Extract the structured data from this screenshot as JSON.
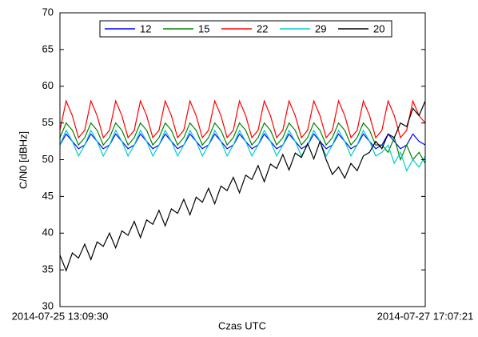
{
  "chart_data": {
    "type": "line",
    "xlabel": "Czas UTC",
    "ylabel": "C/N0 [dBHz]",
    "categories": [
      "2014-07-25 13:09:30",
      null,
      null,
      null,
      null,
      null,
      null,
      null,
      null,
      null,
      null,
      null,
      null,
      null,
      null,
      null,
      null,
      null,
      null,
      null,
      null,
      null,
      null,
      null,
      null,
      null,
      null,
      null,
      null,
      null,
      null,
      null,
      null,
      null,
      null,
      null,
      null,
      null,
      null,
      null,
      null,
      null,
      null,
      null,
      null,
      null,
      null,
      null,
      null,
      null,
      null,
      null,
      null,
      null,
      null,
      null,
      null,
      null,
      null,
      "2014-07-27 17:07:21"
    ],
    "ylim": [
      30,
      70
    ],
    "yticks": [
      30,
      35,
      40,
      45,
      50,
      55,
      60,
      65,
      70
    ],
    "legend": "top",
    "series": [
      {
        "name": "12",
        "color": "#0000ff",
        "values": [
          52,
          53.5,
          52.5,
          51.5,
          52,
          53.5,
          52.5,
          51.5,
          52,
          53.5,
          52.5,
          51.5,
          52,
          53.5,
          52.5,
          51.5,
          52,
          53.5,
          52.5,
          51.5,
          52,
          53.5,
          52.5,
          51.5,
          52,
          53.5,
          52.5,
          51.5,
          52,
          53.5,
          52.5,
          51.5,
          52,
          53.5,
          52.5,
          51.5,
          52,
          53.5,
          52.5,
          51.5,
          52,
          53.5,
          52.5,
          51.5,
          52,
          53.5,
          52.5,
          51.5,
          52,
          53.5,
          52.5,
          51.5,
          52,
          53.5,
          52.5,
          51.5,
          52,
          53.5,
          52.5,
          52
        ]
      },
      {
        "name": "15",
        "color": "#008000",
        "values": [
          53,
          55,
          54,
          52,
          53,
          55,
          54,
          52,
          53,
          55,
          54,
          52,
          53,
          55,
          54,
          52,
          53,
          55,
          54,
          52,
          53,
          55,
          54,
          52,
          53,
          55,
          54,
          52,
          53,
          55,
          54,
          52,
          53,
          55,
          54,
          52,
          53,
          55,
          54,
          52,
          53,
          55,
          54,
          52,
          53,
          55,
          54,
          52,
          53,
          55,
          54,
          52,
          52,
          51,
          53,
          50,
          52,
          50,
          51,
          49.5
        ]
      },
      {
        "name": "22",
        "color": "#ff0000",
        "values": [
          54,
          58,
          56,
          53,
          54,
          58,
          56,
          53,
          54,
          58,
          56,
          53,
          54,
          58,
          56,
          53,
          54,
          58,
          56,
          53,
          54,
          58,
          56,
          53,
          54,
          58,
          56,
          53,
          54,
          58,
          56,
          53,
          54,
          58,
          56,
          53,
          54,
          58,
          56,
          53,
          54,
          58,
          56,
          53,
          54,
          58,
          56,
          53,
          54,
          58,
          56,
          53,
          54,
          58,
          56,
          53,
          54,
          58,
          56,
          55
        ]
      },
      {
        "name": "29",
        "color": "#00cccc",
        "values": [
          52,
          54,
          52.5,
          50.5,
          52,
          54,
          52.5,
          50.5,
          52,
          54,
          52.5,
          50.5,
          52,
          54,
          52.5,
          50.5,
          52,
          54,
          52.5,
          50.5,
          52,
          54,
          52.5,
          50.5,
          52,
          54,
          52.5,
          50.5,
          52,
          54,
          52.5,
          50.5,
          52,
          54,
          52.5,
          50.5,
          52,
          54,
          52.5,
          50.5,
          52,
          54,
          52.5,
          50.5,
          52,
          54,
          52.5,
          50.5,
          52,
          54,
          52.5,
          50.5,
          51,
          52,
          49.5,
          51,
          48.5,
          50,
          49,
          50.5
        ]
      },
      {
        "name": "20",
        "color": "#000000",
        "values": [
          37,
          34.9,
          37.3,
          36.6,
          38.5,
          36.4,
          38.8,
          38.2,
          40,
          38,
          40.3,
          39.7,
          41.6,
          39.4,
          41.8,
          41.2,
          43.1,
          41,
          43.3,
          42.7,
          44.6,
          42.5,
          44.9,
          44.2,
          46.1,
          44,
          46.4,
          45.8,
          47.6,
          45.5,
          47.9,
          47.3,
          49.2,
          47,
          49.4,
          48.8,
          50.7,
          48.6,
          50.9,
          50.3,
          52.2,
          50.1,
          52.5,
          50,
          48,
          49,
          47.5,
          49.5,
          48.5,
          50.5,
          51,
          52.5,
          51.5,
          53.5,
          53,
          55,
          54.5,
          57,
          56,
          58
        ]
      }
    ]
  }
}
